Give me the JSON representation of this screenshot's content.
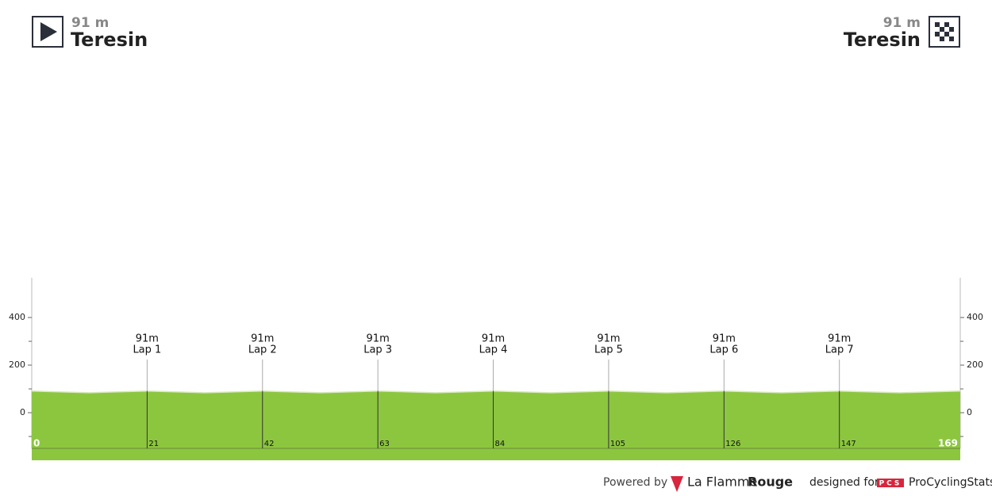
{
  "start": {
    "elevation": "91 m",
    "name": "Teresin"
  },
  "finish": {
    "elevation": "91 m",
    "name": "Teresin"
  },
  "chart_data": {
    "type": "area",
    "x": [
      0,
      10.5,
      21,
      31.5,
      42,
      52.5,
      63,
      73.5,
      84,
      94.5,
      105,
      115.5,
      126,
      136.5,
      147,
      158,
      169
    ],
    "values": [
      91,
      84,
      91,
      84,
      91,
      84,
      91,
      84,
      91,
      84,
      91,
      84,
      91,
      84,
      91,
      84,
      91
    ],
    "color": "#8cc63f",
    "xlim": [
      0,
      169
    ],
    "ylim": [
      -150,
      567
    ],
    "xticks": [
      0,
      21,
      42,
      63,
      84,
      105,
      126,
      147,
      169
    ],
    "yticks": [
      0,
      200,
      400
    ],
    "yminorticks": [
      -100,
      100,
      300
    ],
    "laps": [
      {
        "x": 21,
        "elevation": "91m",
        "label": "Lap 1"
      },
      {
        "x": 42,
        "elevation": "91m",
        "label": "Lap 2"
      },
      {
        "x": 63,
        "elevation": "91m",
        "label": "Lap 3"
      },
      {
        "x": 84,
        "elevation": "91m",
        "label": "Lap 4"
      },
      {
        "x": 105,
        "elevation": "91m",
        "label": "Lap 5"
      },
      {
        "x": 126,
        "elevation": "91m",
        "label": "Lap 6"
      },
      {
        "x": 147,
        "elevation": "91m",
        "label": "Lap 7"
      }
    ]
  },
  "footer": {
    "powered": "Powered by",
    "brand": "La Flamme",
    "brand_bold": "Rouge",
    "designed": "designed for",
    "pcs": "PCS",
    "site": "ProCyclingStats"
  }
}
